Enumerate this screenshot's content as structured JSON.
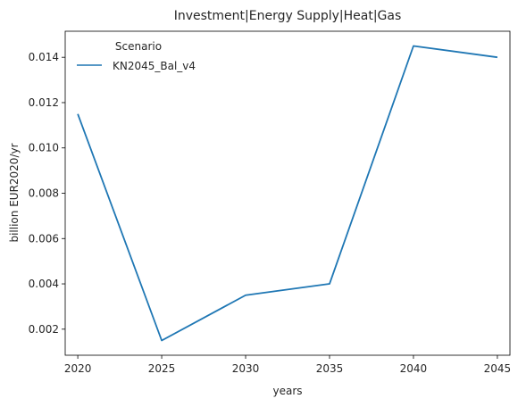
{
  "chart_data": {
    "type": "line",
    "title": "Investment|Energy Supply|Heat|Gas",
    "xlabel": "years",
    "ylabel": "billion EUR2020/yr",
    "x": [
      2020,
      2025,
      2030,
      2035,
      2040,
      2045
    ],
    "x_ticks": [
      "2020",
      "2025",
      "2030",
      "2035",
      "2040",
      "2045"
    ],
    "y_ticks": [
      "0.002",
      "0.004",
      "0.006",
      "0.008",
      "0.010",
      "0.012",
      "0.014"
    ],
    "xlim": [
      2019.25,
      2045.75
    ],
    "ylim": [
      0.00085,
      0.01515
    ],
    "grid": false,
    "legend": {
      "title": "Scenario",
      "placement": "top-left"
    },
    "series": [
      {
        "name": "KN2045_Bal_v4",
        "color": "#1f77b4",
        "values": [
          0.0115,
          0.0015,
          0.0035,
          0.004,
          0.0145,
          0.014
        ]
      }
    ]
  }
}
